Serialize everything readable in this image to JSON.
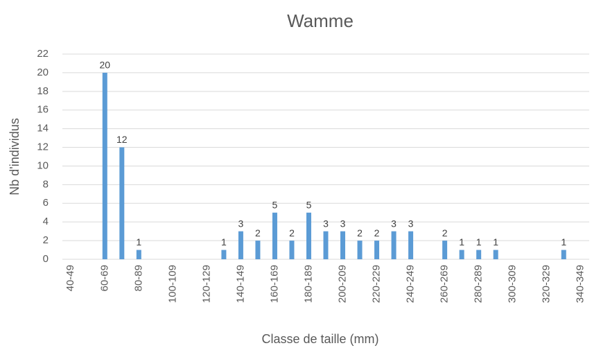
{
  "chart_data": {
    "type": "bar",
    "title": "Wamme",
    "xlabel": "Classe de taille (mm)",
    "ylabel": "Nb d'individus",
    "categories": [
      "40-49",
      null,
      "60-69",
      null,
      "80-89",
      null,
      "100-109",
      null,
      "120-129",
      null,
      "140-149",
      null,
      "160-169",
      null,
      "180-189",
      null,
      "200-209",
      null,
      "220-229",
      null,
      "240-249",
      null,
      "260-269",
      null,
      "280-289",
      null,
      "300-309",
      null,
      "320-329",
      null,
      "340-349"
    ],
    "values": [
      0,
      0,
      20,
      12,
      1,
      0,
      0,
      0,
      0,
      1,
      3,
      2,
      5,
      2,
      5,
      3,
      3,
      2,
      2,
      3,
      3,
      0,
      2,
      1,
      1,
      1,
      0,
      0,
      0,
      1,
      0
    ],
    "color": "#5b9bd5",
    "ylim": [
      0,
      22
    ],
    "yticks": [
      0,
      2,
      4,
      6,
      8,
      10,
      12,
      14,
      16,
      18,
      20,
      22
    ],
    "grid": true
  }
}
